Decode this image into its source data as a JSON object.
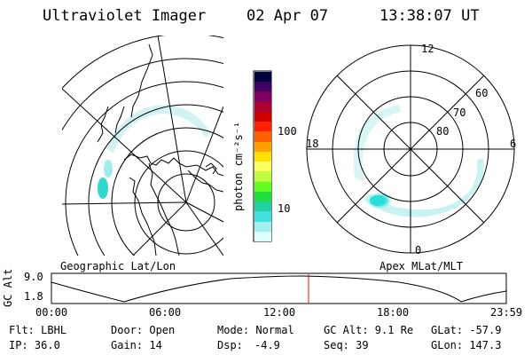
{
  "header": {
    "title": "Ultraviolet Imager",
    "date": "02 Apr 07",
    "time": "13:38:07 UT"
  },
  "colorbar": {
    "unit_label": "photon cm⁻²s⁻¹",
    "ticks": [
      "100",
      "10"
    ],
    "colors": [
      "#000040",
      "#400060",
      "#800060",
      "#b00030",
      "#d00000",
      "#ff2000",
      "#ff6000",
      "#ffa000",
      "#ffe000",
      "#ffff60",
      "#c0ff40",
      "#60ff20",
      "#20e040",
      "#20d0a0",
      "#40e0e0",
      "#a0f0f0",
      "#e0ffff"
    ]
  },
  "geo_map": {
    "label": "Geographic Lat/Lon"
  },
  "polar_map": {
    "label": "Apex MLat/MLT",
    "mlt_labels": {
      "top": "12",
      "left": "18",
      "right": "6",
      "bottom": "0"
    },
    "lat_labels": [
      "60",
      "70",
      "80"
    ]
  },
  "altitude_plot": {
    "ylabel": "GC Alt",
    "y_ticks": [
      "9.0",
      "1.8"
    ],
    "x_ticks": [
      "00:00",
      "06:00",
      "12:00",
      "18:00",
      "23:59"
    ],
    "marker_color": "#ff0000"
  },
  "status": {
    "filter": "Flt: LBHL",
    "door": "Door: Open",
    "mode": "Mode: Normal",
    "gc_alt": "GC Alt: 9.1 Re",
    "glat": "GLat: -57.9",
    "ip": "IP: 36.0",
    "gain": "Gain: 14",
    "dsp_label": "Dsp:",
    "dsp_value": "-4.9",
    "seq": "Seq: 39",
    "glon": "GLon: 147.3"
  }
}
